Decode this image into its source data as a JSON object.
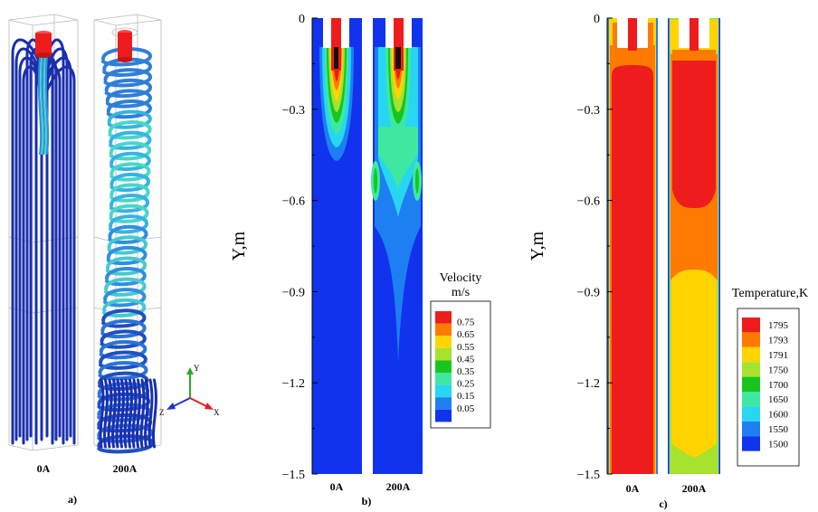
{
  "figure": {
    "panel_a": {
      "label": "a)",
      "cases": [
        "0A",
        "200A"
      ],
      "axes_triad": {
        "x": "X",
        "y": "Y",
        "z": "Z"
      },
      "colors": {
        "streamline_dark": "#1a2fae",
        "streamline_mid": "#2f8fe0",
        "streamline_light": "#48d6c8",
        "electrode": "#ee1c1c"
      }
    },
    "panel_b": {
      "label": "b)",
      "cases": [
        "0A",
        "200A"
      ],
      "ylabel": "Y,m",
      "yticks": [
        "0",
        "−0.3",
        "−0.6",
        "−0.9",
        "−1.2",
        "−1.5"
      ],
      "legend_title_line1": "Velocity",
      "legend_title_line2": "m/s",
      "legend_levels": [
        "0.75",
        "0.65",
        "0.55",
        "0.45",
        "0.35",
        "0.25",
        "0.15",
        "0.05"
      ],
      "legend_colors": [
        "#ee1c1c",
        "#ff7a00",
        "#ffd400",
        "#a6e22e",
        "#18c51e",
        "#3ee8a0",
        "#27d6f0",
        "#1d7ff2",
        "#1133ee"
      ]
    },
    "panel_c": {
      "label": "c)",
      "cases": [
        "0A",
        "200A"
      ],
      "ylabel": "Y,m",
      "yticks": [
        "0",
        "−0.3",
        "−0.6",
        "−0.9",
        "−1.2",
        "−1.5"
      ],
      "legend_title": "Temperature,K",
      "legend_levels": [
        "1795",
        "1793",
        "1791",
        "1750",
        "1700",
        "1650",
        "1600",
        "1550",
        "1500"
      ],
      "legend_colors": [
        "#ee1c1c",
        "#ff7a00",
        "#ffd400",
        "#a6e22e",
        "#18c51e",
        "#3ee8a0",
        "#27d6f0",
        "#1d7ff2",
        "#1133ee"
      ]
    }
  },
  "chart_data": [
    {
      "type": "heatmap",
      "title": "",
      "ylabel": "Y,m",
      "xlabel": "",
      "ylim": [
        -1.5,
        0
      ],
      "categories": [
        "0A",
        "200A"
      ],
      "legend_title": "Velocity m/s",
      "levels": [
        0.05,
        0.15,
        0.25,
        0.35,
        0.45,
        0.55,
        0.65,
        0.75
      ],
      "series": [
        {
          "name": "0A",
          "max_velocity_region_y": [
            -0.1,
            -0.3
          ],
          "bulk_velocity": 0.05
        },
        {
          "name": "200A",
          "max_velocity_region_y": [
            -0.1,
            -0.35
          ],
          "secondary_flow_y": [
            -0.4,
            -0.65
          ],
          "bulk_velocity": 0.05
        }
      ]
    },
    {
      "type": "heatmap",
      "title": "",
      "ylabel": "Y,m",
      "xlabel": "",
      "ylim": [
        -1.5,
        0
      ],
      "categories": [
        "0A",
        "200A"
      ],
      "legend_title": "Temperature,K",
      "levels": [
        1500,
        1550,
        1600,
        1650,
        1700,
        1750,
        1791,
        1793,
        1795
      ],
      "series": [
        {
          "name": "0A",
          "core_temperature": 1795,
          "core_region_y": [
            -0.1,
            -1.5
          ]
        },
        {
          "name": "200A",
          "zones": [
            {
              "temperature": 1795,
              "y": [
                -0.1,
                -0.6
              ]
            },
            {
              "temperature": 1793,
              "y": [
                -0.6,
                -0.85
              ]
            },
            {
              "temperature": 1791,
              "y": [
                -0.85,
                -1.5
              ]
            }
          ]
        }
      ]
    }
  ]
}
